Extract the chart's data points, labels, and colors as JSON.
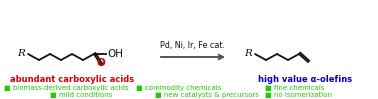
{
  "bg_color": "#ffffff",
  "arrow_color": "#555555",
  "catalyst_text": "Pd, Ni, Ir, Fe cat.",
  "left_label": "abundant carboxylic acids",
  "left_label_color": "#cc0000",
  "right_label": "high value α-olefins",
  "right_label_color": "#0000cc",
  "bullet_color": "#22cc00",
  "bullet_char": "■",
  "row1": [
    "biomass-derived carboxylic acids",
    "commodity chemicals",
    "fine chemicals"
  ],
  "row2": [
    "mild conditions",
    "new catalysts & precursors",
    "no isomerization"
  ],
  "black": "#111111",
  "red": "#cc0000",
  "blue": "#0000cc"
}
